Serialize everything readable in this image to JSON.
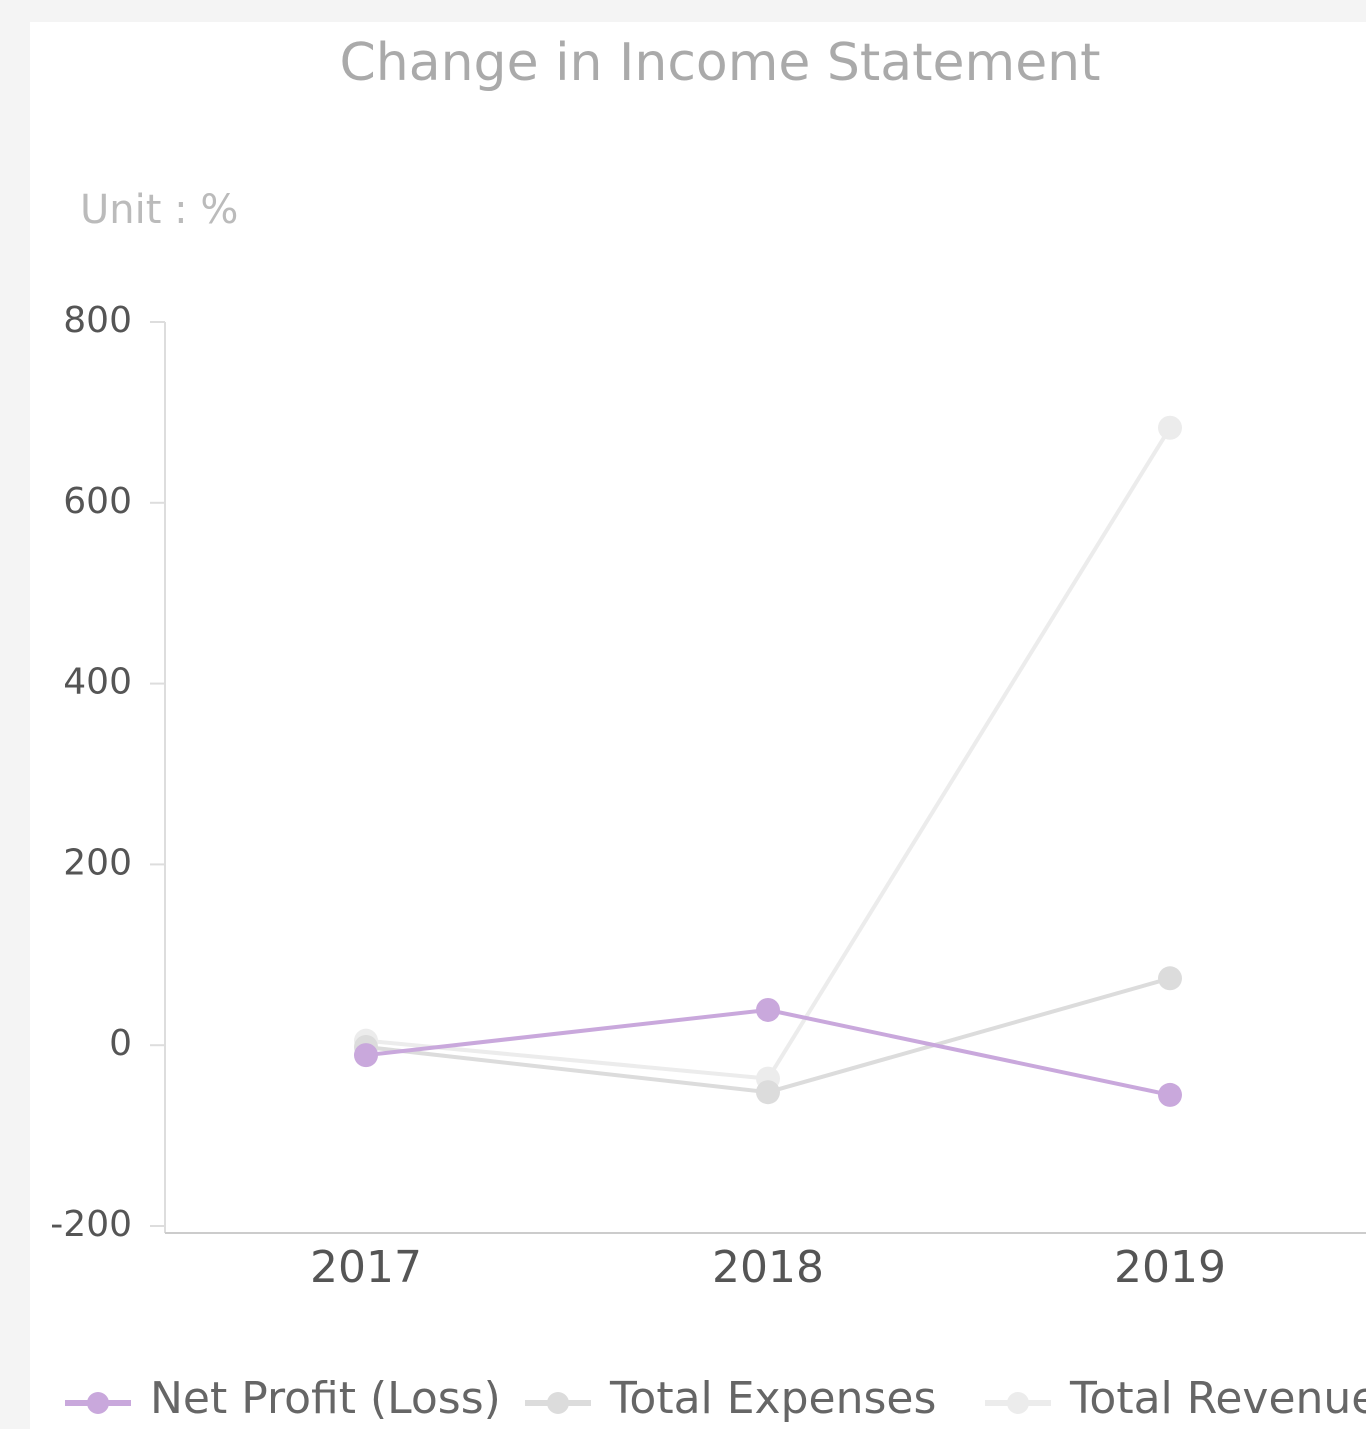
{
  "chart_data": {
    "type": "line",
    "title": "Change in Income Statement",
    "subtitle": "Unit : %",
    "categories": [
      "2017",
      "2018",
      "2019"
    ],
    "series": [
      {
        "name": "Net Profit (Loss)",
        "color": "#c9a8dc",
        "values": [
          -11,
          39,
          -55
        ]
      },
      {
        "name": "Total Expenses",
        "color": "#dcdcdc",
        "values": [
          -2,
          -52,
          74
        ]
      },
      {
        "name": "Total Revenue",
        "color": "#ececec",
        "values": [
          5,
          -37,
          683
        ]
      }
    ],
    "ylim": [
      -200,
      800
    ],
    "yticks": [
      -200,
      0,
      200,
      400,
      600,
      800
    ],
    "grid": false
  }
}
